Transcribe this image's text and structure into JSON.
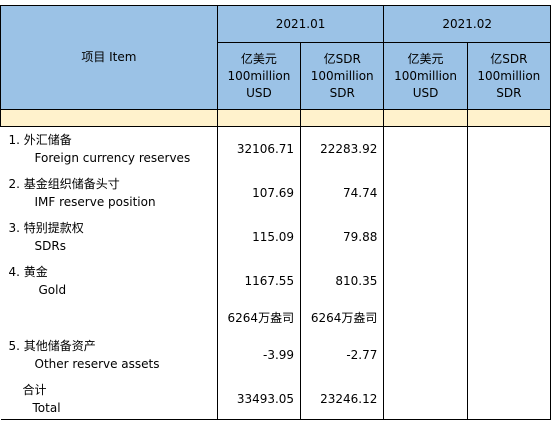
{
  "header": {
    "item_label": "项目  Item",
    "months": [
      "2021.01",
      "2021.02"
    ],
    "units": [
      {
        "zh": "亿美元",
        "en1": "100million",
        "en2": "USD"
      },
      {
        "zh": "亿SDR",
        "en1": "100million",
        "en2": "SDR"
      },
      {
        "zh": "亿美元",
        "en1": "100million",
        "en2": "USD"
      },
      {
        "zh": "亿SDR",
        "en1": "100million",
        "en2": "SDR"
      }
    ]
  },
  "rows": [
    {
      "zh": "1.  外汇储备",
      "en": "Foreign currency reserves",
      "usd": "32106.71",
      "sdr": "22283.92"
    },
    {
      "zh": "2.  基金组织储备头寸",
      "en": "IMF reserve position",
      "usd": "107.69",
      "sdr": "74.74"
    },
    {
      "zh": "3.  特别提款权",
      "en": "SDRs",
      "usd": "115.09",
      "sdr": "79.88"
    },
    {
      "zh": "4.  黄金",
      "en": "Gold",
      "usd": "1167.55",
      "sdr": "810.35"
    },
    {
      "zh": "",
      "en": "",
      "usd": "6264万盎司",
      "sdr": "6264万盎司"
    },
    {
      "zh": "5.  其他储备资产",
      "en": "Other reserve assets",
      "usd": "-3.99",
      "sdr": "-2.77"
    },
    {
      "zh": "合计",
      "en": "Total",
      "usd": "33493.05",
      "sdr": "23246.12"
    }
  ]
}
